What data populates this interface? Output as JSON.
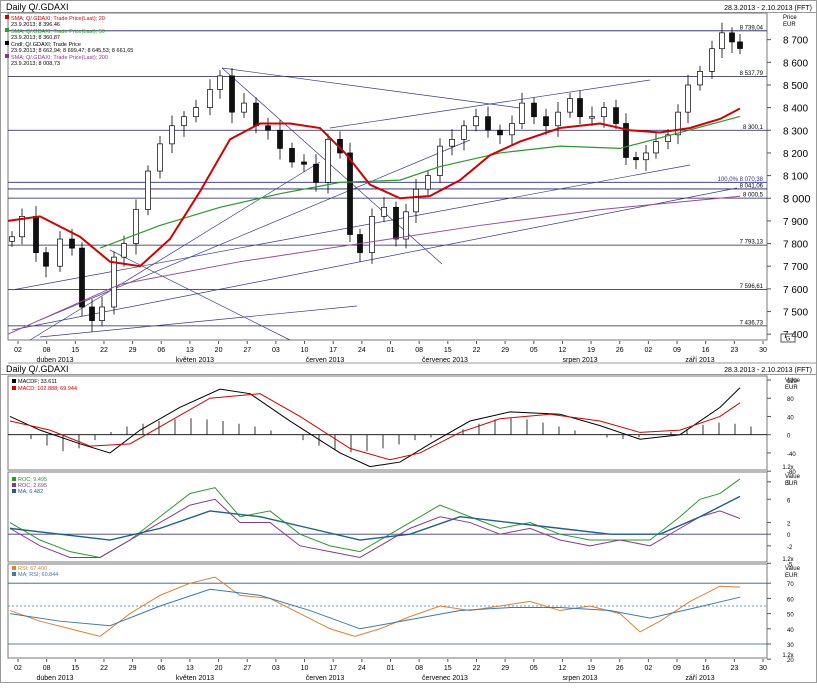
{
  "panels": {
    "main": {
      "title": "Daily Q/.GDAXI",
      "range": "28.3.2013 - 2.10.2013 (FFT)",
      "axis_unit": "Price\nEUR",
      "legend": [
        {
          "label": "SMA; Q/.GDAXI; Trade Price(Last); 20",
          "sub": "23.9.2013; 8 396,46",
          "color": "#d40000"
        },
        {
          "label": "SMA; Q/.GDAXI; Trade Price(Last); 50",
          "sub": "23.9.2013; 8 360,87",
          "color": "#2a9a2a"
        },
        {
          "label": "Cndl; Q/.GDAXI; Trade Price",
          "sub": "23.9.2013; 8 662,94; 8 699,47; 8 645,53; 8 661,65",
          "color": "#000000"
        },
        {
          "label": "SMA; Q/.GDAXI; Trade Price(Last); 200",
          "sub": "23.9.2013; 8 008,73",
          "color": "#8a3a8a"
        }
      ],
      "level_labels": [
        "8 739,04",
        "8 537,79",
        "8 300,1",
        "100,0% 8 070,38",
        "8 041,06",
        "8 000,5",
        "7 793,13",
        "7 596,61",
        "7 436,73"
      ],
      "badge": "G"
    },
    "macd": {
      "title": "Daily Q/.GDAXI",
      "range": "28.3.2013 - 2.10.2013 (FFT)",
      "axis_unit": "Value\nEUR",
      "legend": [
        {
          "label": "MACDF; 33.611",
          "color": "#000000"
        },
        {
          "label": "MACD; 102.888; 69.944",
          "color": "#d40000"
        }
      ],
      "badge": "1.2x"
    },
    "roc": {
      "axis_unit": "Value\nEUR",
      "legend": [
        {
          "label": "ROC; 9.495",
          "color": "#2a9a2a"
        },
        {
          "label": "ROC; 2.695",
          "color": "#8a3a8a"
        },
        {
          "label": "MA; 6.482",
          "color": "#1f5f8a"
        }
      ],
      "badge": "1.2x"
    },
    "rsi": {
      "axis_unit": "Value\nEUR",
      "legend": [
        {
          "label": "RSI; 67.400",
          "color": "#e08030"
        },
        {
          "label": "MA; RSI; 60.844",
          "color": "#3a7ab0"
        }
      ],
      "badge": "1.2x"
    }
  },
  "x_axis": {
    "day_ticks": [
      "02",
      "08",
      "15",
      "22",
      "29",
      "06",
      "13",
      "20",
      "27",
      "03",
      "10",
      "17",
      "24",
      "01",
      "08",
      "15",
      "22",
      "29",
      "05",
      "12",
      "19",
      "26",
      "02",
      "09",
      "16",
      "23",
      "30"
    ],
    "months": [
      "duben 2013",
      "květen 2013",
      "červen 2013",
      "červenec 2013",
      "srpen 2013",
      "září 2013"
    ]
  },
  "chart_data": [
    {
      "type": "candlestick",
      "title": "Daily Q/.GDAXI",
      "ylabel": "Price EUR",
      "ylim": [
        7400,
        8800
      ],
      "y_ticks": [
        7400,
        7500,
        7600,
        7700,
        7800,
        7900,
        8000,
        8100,
        8200,
        8300,
        8400,
        8500,
        8600,
        8700
      ],
      "y_tick_labels": [
        "7 400",
        "7 500",
        "7 600",
        "7 700",
        "7 800",
        "7 900",
        "8 000",
        "8 100",
        "8 200",
        "8 300",
        "8 400",
        "8 500",
        "8 600",
        "8 700"
      ],
      "grid": false,
      "horizontal_levels": [
        8739.04,
        8537.79,
        8300.1,
        8070.38,
        8041.06,
        8000.5,
        7793.13,
        7596.61,
        7436.73
      ],
      "last_candle": {
        "date": "23.9.2013",
        "open": 8662.94,
        "high": 8699.47,
        "low": 8645.53,
        "close": 8661.65
      },
      "series_sma": [
        {
          "name": "SMA 20",
          "last": 8396.46
        },
        {
          "name": "SMA 50",
          "last": 8360.87
        },
        {
          "name": "SMA 200",
          "last": 8008.73
        }
      ]
    },
    {
      "type": "line",
      "title": "MACD",
      "ylim": [
        -80,
        120
      ],
      "y_ticks": [
        -80,
        -40,
        0,
        40,
        80,
        120
      ],
      "series": [
        {
          "name": "MACDF",
          "last": 33.611
        },
        {
          "name": "MACD",
          "last": 102.888,
          "signal": 69.944
        }
      ]
    },
    {
      "type": "line",
      "title": "ROC",
      "ylim": [
        -5,
        10
      ],
      "y_ticks": [
        -5,
        -2,
        0,
        2,
        6,
        9
      ],
      "series": [
        {
          "name": "ROC",
          "last": 9.495
        },
        {
          "name": "ROC",
          "last": 2.695
        },
        {
          "name": "MA",
          "last": 6.482
        }
      ]
    },
    {
      "type": "line",
      "title": "RSI",
      "ylim": [
        20,
        80
      ],
      "y_ticks": [
        20,
        30,
        40,
        50,
        60,
        70
      ],
      "reference_lines": [
        70,
        55,
        30
      ],
      "series": [
        {
          "name": "RSI",
          "last": 67.4
        },
        {
          "name": "MA; RSI",
          "last": 60.844
        }
      ]
    }
  ]
}
